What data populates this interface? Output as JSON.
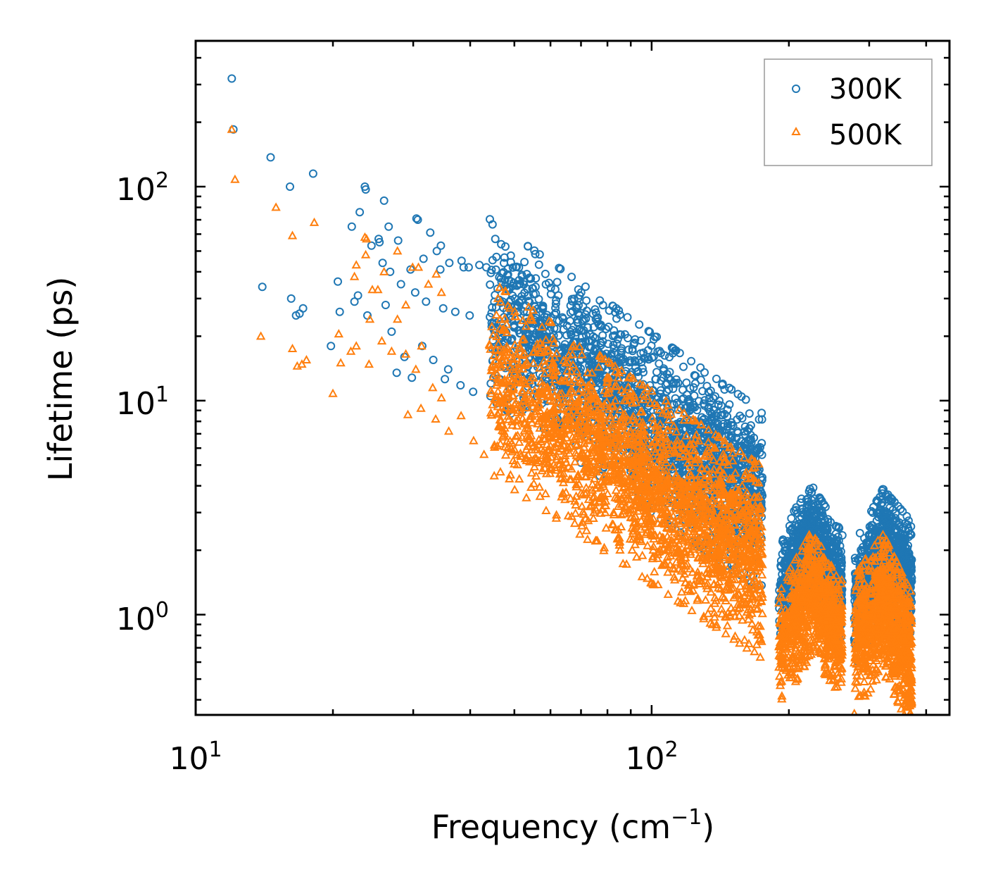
{
  "colors": {
    "series_300K": "#1f77b4",
    "series_500K": "#ff7f0e",
    "axis": "#000000",
    "legend_border": "#999999"
  },
  "chart_data": {
    "type": "scatter",
    "title": "",
    "xlabel": "Frequency (cm",
    "xlabel_sup": "−1",
    "xlabel_close": ")",
    "ylabel": "Lifetime (ps)",
    "xscale": "log",
    "yscale": "log",
    "xlim": [
      10,
      450
    ],
    "ylim": [
      0.34,
      480
    ],
    "x_ticks": [
      {
        "value": 10,
        "base": "10",
        "exp": "1"
      },
      {
        "value": 100,
        "base": "10",
        "exp": "2"
      }
    ],
    "y_ticks": [
      {
        "value": 1,
        "base": "10",
        "exp": "0"
      },
      {
        "value": 10,
        "base": "10",
        "exp": "1"
      },
      {
        "value": 100,
        "base": "10",
        "exp": "2"
      }
    ],
    "legend": {
      "placement": "top-right",
      "entries": [
        "300K",
        "500K"
      ]
    },
    "series": [
      {
        "name": "300K",
        "marker": "circle",
        "points": [
          [
            12.0,
            320
          ],
          [
            12.1,
            185
          ],
          [
            14.6,
            137
          ],
          [
            16.1,
            100
          ],
          [
            18.1,
            115
          ],
          [
            23.5,
            100
          ],
          [
            23.6,
            97
          ],
          [
            22.9,
            76
          ],
          [
            22.0,
            65
          ],
          [
            25.9,
            86
          ],
          [
            26.5,
            65
          ],
          [
            30.5,
            71
          ],
          [
            30.7,
            70
          ],
          [
            32.7,
            61
          ],
          [
            25.3,
            55
          ],
          [
            24.3,
            53
          ],
          [
            25.2,
            57
          ],
          [
            25.7,
            44
          ],
          [
            27.8,
            56
          ],
          [
            31.6,
            46
          ],
          [
            33.8,
            50
          ],
          [
            34.5,
            53
          ],
          [
            26.7,
            40
          ],
          [
            29.6,
            41
          ],
          [
            34.4,
            41
          ],
          [
            36.0,
            44
          ],
          [
            38.3,
            45
          ],
          [
            38.7,
            42
          ],
          [
            39.7,
            42
          ],
          [
            41.9,
            43
          ],
          [
            43.4,
            42
          ],
          [
            45.4,
            57
          ],
          [
            14.0,
            34
          ],
          [
            16.2,
            30
          ],
          [
            17.2,
            27
          ],
          [
            16.6,
            25
          ],
          [
            16.9,
            25.5
          ],
          [
            20.5,
            36
          ],
          [
            22.3,
            29
          ],
          [
            22.7,
            31
          ],
          [
            20.7,
            26
          ],
          [
            23.8,
            25
          ],
          [
            26.1,
            28
          ],
          [
            28.2,
            35
          ],
          [
            30.3,
            32
          ],
          [
            32.0,
            29
          ],
          [
            34.9,
            27
          ],
          [
            37.1,
            26
          ],
          [
            39.9,
            25
          ],
          [
            19.8,
            18
          ],
          [
            26.9,
            21
          ],
          [
            28.7,
            16
          ],
          [
            31.4,
            18
          ],
          [
            33.2,
            15.5
          ],
          [
            35.8,
            14
          ],
          [
            27.6,
            13.5
          ],
          [
            29.8,
            12.8
          ],
          [
            35.2,
            12.6
          ],
          [
            38.1,
            11.8
          ],
          [
            40.6,
            11
          ],
          [
            44.3,
            10.5
          ],
          [
            46.9,
            9.8
          ],
          [
            48.5,
            10.2
          ],
          [
            52.6,
            9.5
          ],
          [
            55.1,
            9.2
          ]
        ],
        "clusters": [
          {
            "x_range": [
              44,
              175
            ],
            "y_center": [
              27,
              3.4
            ],
            "y_spread": 1.55,
            "count": 2000
          },
          {
            "x_range": [
              190,
              262
            ],
            "y_center": [
              1.3,
              2.3,
              1.35
            ],
            "y_spread": 1.3,
            "count": 900
          },
          {
            "x_range": [
              278,
              372
            ],
            "y_center": [
              1.1,
              2.0,
              1.4
            ],
            "y_spread": 1.35,
            "count": 1000
          }
        ]
      },
      {
        "name": "500K",
        "marker": "triangle",
        "points": [
          [
            12.0,
            185
          ],
          [
            12.2,
            108
          ],
          [
            15.0,
            80
          ],
          [
            16.3,
            59
          ],
          [
            18.2,
            68
          ],
          [
            23.5,
            58
          ],
          [
            23.7,
            57
          ],
          [
            22.3,
            38
          ],
          [
            22.5,
            43
          ],
          [
            23.6,
            48
          ],
          [
            24.4,
            33
          ],
          [
            25.9,
            40
          ],
          [
            27.7,
            50
          ],
          [
            29.9,
            42
          ],
          [
            30.8,
            42
          ],
          [
            32.4,
            35
          ],
          [
            33.7,
            39
          ],
          [
            34.6,
            32
          ],
          [
            13.9,
            20
          ],
          [
            16.3,
            17.5
          ],
          [
            16.7,
            14.5
          ],
          [
            17.1,
            14.8
          ],
          [
            17.5,
            15.5
          ],
          [
            20.6,
            20.5
          ],
          [
            21.9,
            17
          ],
          [
            22.5,
            18
          ],
          [
            24.1,
            24
          ],
          [
            25.1,
            33
          ],
          [
            28.9,
            28
          ],
          [
            27.7,
            24
          ],
          [
            28.9,
            16.5
          ],
          [
            31.3,
            18
          ],
          [
            20.0,
            10.8
          ],
          [
            20.8,
            15
          ],
          [
            24.0,
            14.8
          ],
          [
            25.6,
            19
          ],
          [
            26.9,
            17
          ],
          [
            30.4,
            14
          ],
          [
            33.1,
            11.5
          ],
          [
            34.6,
            10.3
          ],
          [
            29.2,
            8.6
          ],
          [
            31.2,
            9.2
          ],
          [
            33.6,
            8.2
          ],
          [
            35.9,
            7.2
          ],
          [
            38.2,
            8.5
          ],
          [
            40.7,
            6.5
          ],
          [
            42.9,
            5.6
          ],
          [
            45.2,
            6.2
          ],
          [
            70.5,
            2.7
          ],
          [
            72.6,
            2.75
          ]
        ],
        "clusters": [
          {
            "x_range": [
              44,
              175
            ],
            "y_center": [
              13,
              1.75
            ],
            "y_spread": 1.6,
            "count": 2300
          },
          {
            "x_range": [
              190,
              262
            ],
            "y_center": [
              0.68,
              1.25,
              0.8
            ],
            "y_spread": 1.35,
            "count": 900
          },
          {
            "x_range": [
              278,
              372
            ],
            "y_center": [
              0.72,
              1.15,
              0.6
            ],
            "y_spread": 1.4,
            "count": 1000
          }
        ]
      }
    ]
  }
}
